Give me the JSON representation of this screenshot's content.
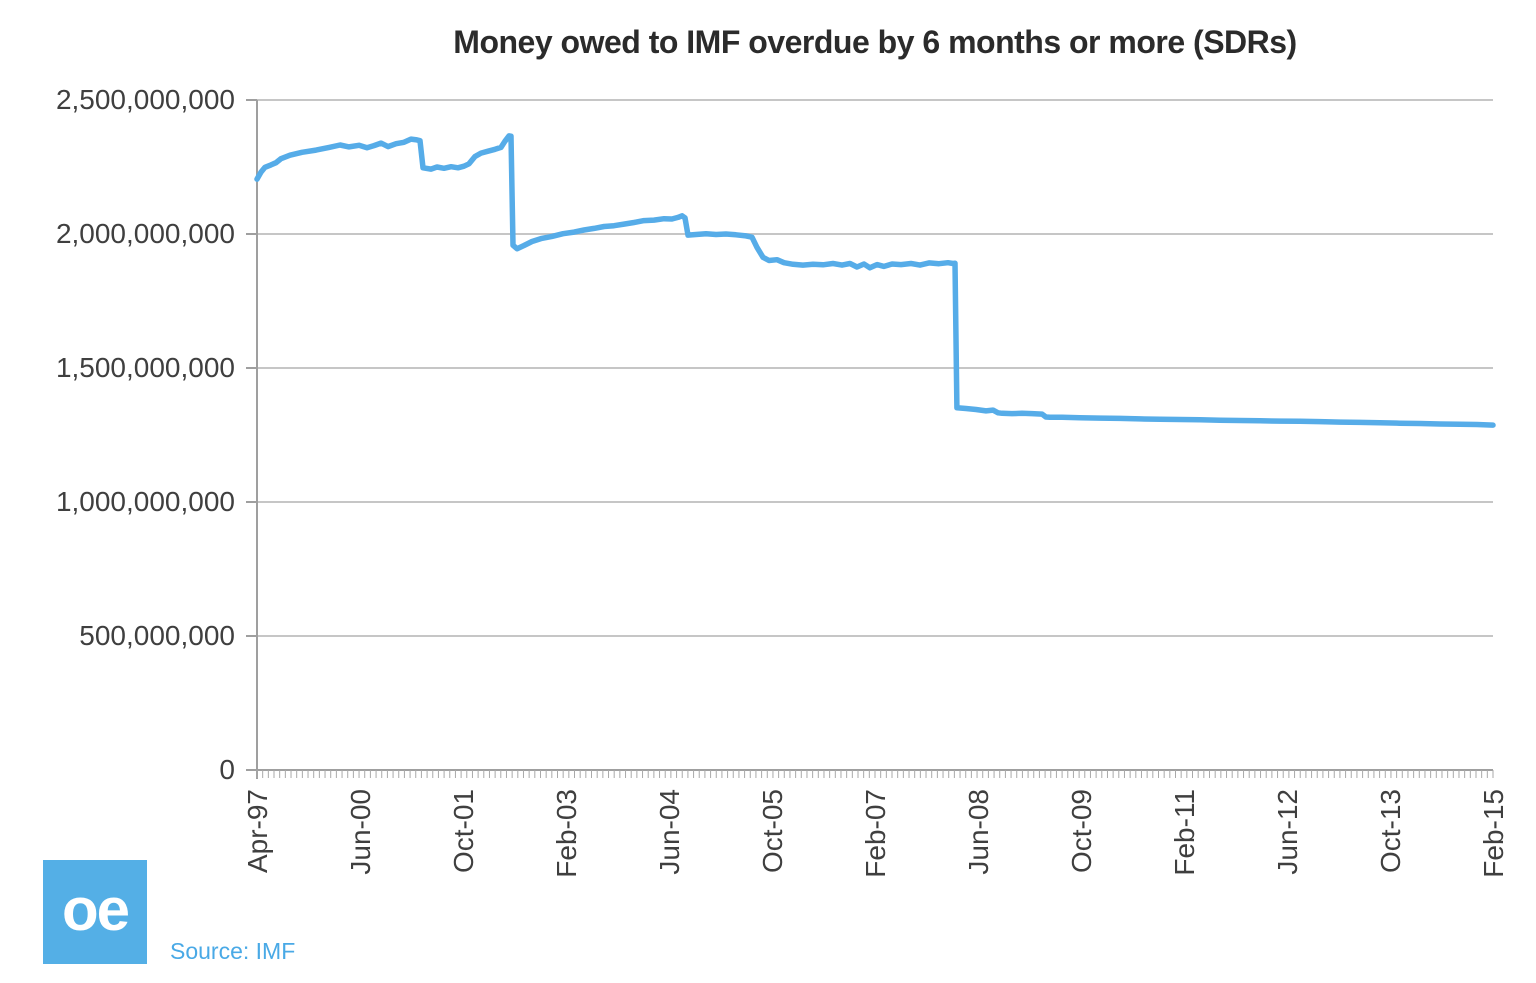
{
  "chart_data": {
    "type": "line",
    "title": "Money owed to IMF overdue by 6 months or more (SDRs)",
    "xlabel": "",
    "ylabel": "",
    "value_unit": "SDR (points stored in millions of SDRs)",
    "ylim": [
      0,
      2500000000
    ],
    "ytick_values": [
      0,
      500000000,
      1000000000,
      1500000000,
      2000000000,
      2500000000
    ],
    "ytick_labels": [
      "0",
      "500,000,000",
      "1,000,000,000",
      "1,500,000,000",
      "2,000,000,000",
      "2,500,000,000"
    ],
    "x_tick_labels": [
      "Apr-97",
      "Jun-00",
      "Oct-01",
      "Feb-03",
      "Jun-04",
      "Oct-05",
      "Feb-07",
      "Jun-08",
      "Oct-09",
      "Feb-11",
      "Jun-12",
      "Oct-13",
      "Feb-15"
    ],
    "minor_x_tick_intervals": 218,
    "grid": "horizontal",
    "legend": "none",
    "series": [
      {
        "name": "Money owed to IMF overdue by 6 months or more",
        "color": "#56ACE8",
        "points_format": "[x_fraction_of_axis, value_in_millions_SDR]",
        "points": [
          [
            0,
            2205
          ],
          [
            0.0032,
            2231
          ],
          [
            0.0065,
            2249
          ],
          [
            0.0113,
            2258
          ],
          [
            0.0154,
            2266
          ],
          [
            0.0194,
            2281
          ],
          [
            0.0267,
            2294
          ],
          [
            0.0364,
            2305
          ],
          [
            0.0477,
            2313
          ],
          [
            0.0583,
            2323
          ],
          [
            0.0672,
            2332
          ],
          [
            0.0744,
            2325
          ],
          [
            0.0825,
            2331
          ],
          [
            0.089,
            2322
          ],
          [
            0.0947,
            2330
          ],
          [
            0.1003,
            2339
          ],
          [
            0.106,
            2326
          ],
          [
            0.1125,
            2337
          ],
          [
            0.1189,
            2342
          ],
          [
            0.1246,
            2354
          ],
          [
            0.1294,
            2351
          ],
          [
            0.1319,
            2348
          ],
          [
            0.1343,
            2247
          ],
          [
            0.1408,
            2242
          ],
          [
            0.1456,
            2250
          ],
          [
            0.1513,
            2245
          ],
          [
            0.157,
            2251
          ],
          [
            0.1626,
            2247
          ],
          [
            0.1675,
            2253
          ],
          [
            0.1715,
            2262
          ],
          [
            0.1764,
            2289
          ],
          [
            0.1812,
            2302
          ],
          [
            0.1869,
            2309
          ],
          [
            0.1926,
            2316
          ],
          [
            0.1974,
            2323
          ],
          [
            0.2006,
            2346
          ],
          [
            0.2039,
            2366
          ],
          [
            0.2055,
            2365
          ],
          [
            0.2071,
            1958
          ],
          [
            0.2104,
            1945
          ],
          [
            0.216,
            1957
          ],
          [
            0.2225,
            1972
          ],
          [
            0.2298,
            1983
          ],
          [
            0.2387,
            1991
          ],
          [
            0.2476,
            2001
          ],
          [
            0.2565,
            2007
          ],
          [
            0.2646,
            2015
          ],
          [
            0.2727,
            2021
          ],
          [
            0.2808,
            2028
          ],
          [
            0.2888,
            2031
          ],
          [
            0.2969,
            2037
          ],
          [
            0.305,
            2043
          ],
          [
            0.3131,
            2050
          ],
          [
            0.3212,
            2052
          ],
          [
            0.3293,
            2057
          ],
          [
            0.3357,
            2056
          ],
          [
            0.3406,
            2062
          ],
          [
            0.3439,
            2068
          ],
          [
            0.3463,
            2060
          ],
          [
            0.3487,
            1996
          ],
          [
            0.3552,
            1998
          ],
          [
            0.3633,
            2001
          ],
          [
            0.3714,
            1998
          ],
          [
            0.3794,
            2000
          ],
          [
            0.3875,
            1997
          ],
          [
            0.3956,
            1993
          ],
          [
            0.4005,
            1988
          ],
          [
            0.4045,
            1950
          ],
          [
            0.4094,
            1913
          ],
          [
            0.4142,
            1901
          ],
          [
            0.4207,
            1904
          ],
          [
            0.4264,
            1893
          ],
          [
            0.4337,
            1887
          ],
          [
            0.4417,
            1884
          ],
          [
            0.4498,
            1887
          ],
          [
            0.4579,
            1885
          ],
          [
            0.466,
            1890
          ],
          [
            0.4733,
            1884
          ],
          [
            0.4798,
            1890
          ],
          [
            0.4854,
            1877
          ],
          [
            0.4911,
            1888
          ],
          [
            0.4959,
            1874
          ],
          [
            0.5016,
            1886
          ],
          [
            0.5073,
            1879
          ],
          [
            0.5138,
            1888
          ],
          [
            0.521,
            1886
          ],
          [
            0.5291,
            1890
          ],
          [
            0.5364,
            1884
          ],
          [
            0.5437,
            1892
          ],
          [
            0.5518,
            1889
          ],
          [
            0.5591,
            1893
          ],
          [
            0.5631,
            1890
          ],
          [
            0.5647,
            1891
          ],
          [
            0.5663,
            1352
          ],
          [
            0.5736,
            1349
          ],
          [
            0.5817,
            1345
          ],
          [
            0.5898,
            1340
          ],
          [
            0.5955,
            1343
          ],
          [
            0.5995,
            1333
          ],
          [
            0.6028,
            1331
          ],
          [
            0.6108,
            1330
          ],
          [
            0.6189,
            1331
          ],
          [
            0.627,
            1330
          ],
          [
            0.6351,
            1328
          ],
          [
            0.6383,
            1317
          ],
          [
            0.6416,
            1316
          ],
          [
            0.6513,
            1316
          ],
          [
            0.6658,
            1314
          ],
          [
            0.682,
            1313
          ],
          [
            0.6982,
            1312
          ],
          [
            0.7144,
            1310
          ],
          [
            0.7306,
            1309
          ],
          [
            0.7468,
            1308
          ],
          [
            0.7629,
            1307
          ],
          [
            0.7791,
            1305
          ],
          [
            0.7952,
            1304
          ],
          [
            0.8114,
            1303
          ],
          [
            0.8276,
            1302
          ],
          [
            0.8438,
            1301
          ],
          [
            0.86,
            1300
          ],
          [
            0.8762,
            1298
          ],
          [
            0.8924,
            1297
          ],
          [
            0.9085,
            1296
          ],
          [
            0.9247,
            1294
          ],
          [
            0.9409,
            1293
          ],
          [
            0.9571,
            1291
          ],
          [
            0.9733,
            1290
          ],
          [
            0.987,
            1289
          ],
          [
            1,
            1287
          ]
        ]
      }
    ]
  },
  "branding": {
    "logo_text": "oe",
    "logo_color": "#54AFE6",
    "source_label": "Source: IMF",
    "source_color": "#49A9E6"
  },
  "colors": {
    "background": "#ffffff",
    "line": "#56ACE8",
    "gridline": "#c6c6c6",
    "axis": "#9f9f9f",
    "tick": "#a9a9a9",
    "tick_label": "#3f3f3f",
    "title": "#2b2b2b"
  }
}
